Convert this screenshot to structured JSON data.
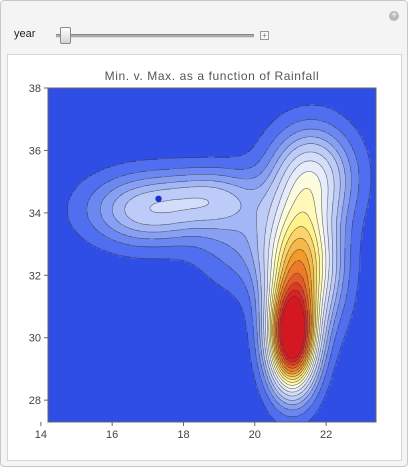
{
  "controls": {
    "year_label": "year",
    "year_value_fraction": 0.02,
    "expand_icon": "plus-icon",
    "corner_icon": "plus-icon"
  },
  "chart_data": {
    "type": "contour",
    "title": "Min. v. Max. as a function of Rainfall",
    "xlabel": "",
    "ylabel": "",
    "xlim": [
      14.2,
      23.4
    ],
    "ylim": [
      27.3,
      38.0
    ],
    "x_ticks": [
      "14",
      "16",
      "18",
      "20",
      "22"
    ],
    "x_tick_values": [
      14,
      16,
      18,
      20,
      22
    ],
    "y_ticks": [
      "28",
      "30",
      "32",
      "34",
      "36",
      "38"
    ],
    "y_tick_values": [
      28,
      30,
      32,
      34,
      36,
      38
    ],
    "marked_point": {
      "x": 17.3,
      "y": 34.45
    },
    "peaks": [
      {
        "x": 21.05,
        "y": 29.85,
        "level": "max"
      },
      {
        "x": 17.0,
        "y": 33.9,
        "level": "secondary"
      }
    ],
    "colors": {
      "low": "#2f4ee6",
      "mid": "#dfe7fb",
      "high_yellow": "#fff48a",
      "high_orange": "#f29a2a",
      "peak_red": "#dd1f26",
      "point": "#1a2fd0"
    }
  }
}
